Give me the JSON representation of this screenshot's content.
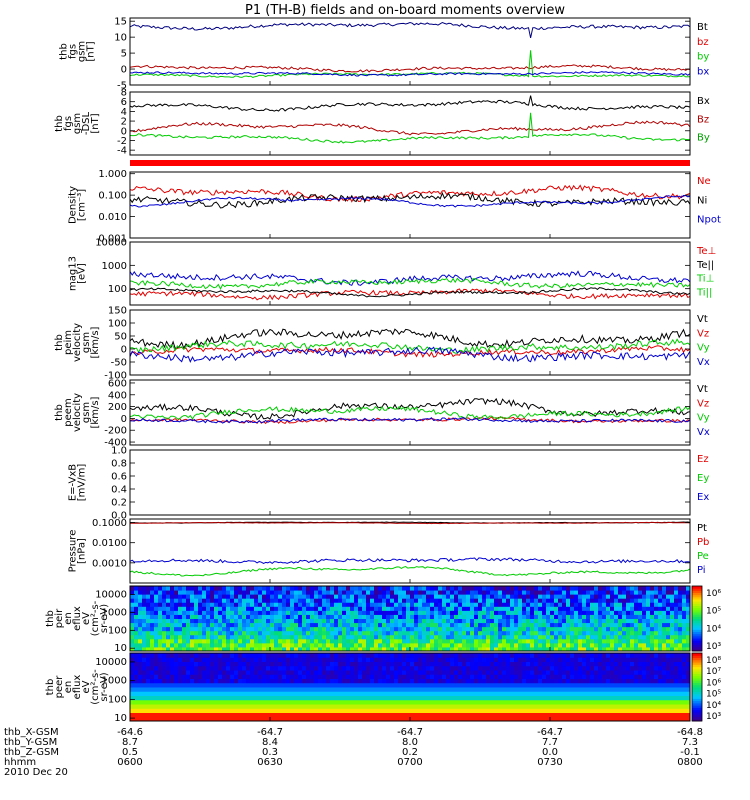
{
  "title": "P1  (TH-B) fields and on-board moments overview",
  "colors": {
    "black": "#000000",
    "red": "#e00000",
    "green": "#00cc00",
    "blue": "#0000d0",
    "darkred": "#b00000",
    "darkgreen": "#00a000"
  },
  "chart_data": [
    {
      "id": "fgs-gsm",
      "type": "line",
      "ylabel_lines": [
        "thb",
        "fgs",
        "gsm",
        "[nT]"
      ],
      "ylim": [
        -5,
        16
      ],
      "yticks": [
        -5,
        0,
        5,
        10,
        15
      ],
      "ytick_labels": [
        "-5",
        "0",
        "5",
        "10",
        "15"
      ],
      "series": [
        {
          "name": "Bt",
          "color": "#000080",
          "base": 13.5,
          "noise": 0.5,
          "wave": 0.6,
          "spike": [
            0.715,
            -3
          ],
          "legend": "#000000"
        },
        {
          "name": "bz",
          "color": "#b00000",
          "base": 0.2,
          "noise": 0.4,
          "wave": 0.5,
          "spike": null,
          "legend": "#e00000"
        },
        {
          "name": "by",
          "color": "#00cc00",
          "base": -1.8,
          "noise": 0.3,
          "wave": 0.4,
          "spike": [
            0.715,
            8
          ],
          "legend": "#00cc00"
        },
        {
          "name": "bx",
          "color": "#0000d0",
          "base": -1.5,
          "noise": 0.3,
          "wave": 0.3,
          "spike": null,
          "legend": "#0000d0"
        }
      ]
    },
    {
      "id": "fgs-gsm-dsl",
      "type": "line",
      "ylabel_lines": [
        "thb",
        "fgs",
        "gsm",
        "-DSL",
        "[nT]"
      ],
      "ylim": [
        -5,
        8
      ],
      "yticks": [
        -4,
        -2,
        0,
        2,
        4,
        6,
        8
      ],
      "ytick_labels": [
        "-4",
        "-2",
        "0",
        "2",
        "4",
        "6",
        "8"
      ],
      "series": [
        {
          "name": "Bx",
          "color": "#000000",
          "base": 5.2,
          "noise": 0.3,
          "wave": 0.6,
          "spike": [
            0.715,
            2
          ],
          "legend": "#000000"
        },
        {
          "name": "Bz",
          "color": "#b00000",
          "base": 0.5,
          "noise": 0.3,
          "wave": 0.8,
          "spike": null,
          "legend": "#b00000"
        },
        {
          "name": "By",
          "color": "#00cc00",
          "base": -1.5,
          "noise": 0.25,
          "wave": 0.5,
          "spike": [
            0.715,
            5
          ],
          "legend": "#00a000"
        }
      ]
    },
    {
      "id": "mode-bar",
      "type": "bar",
      "color": "#ff0000"
    },
    {
      "id": "density",
      "type": "line",
      "log": true,
      "ylabel_lines": [
        "Density",
        "[cm⁻³]"
      ],
      "ylim": [
        0.001,
        1.2
      ],
      "yticks": [
        0.001,
        0.01,
        0.1,
        1
      ],
      "ytick_labels": [
        "0.001",
        "0.010",
        "0.100",
        "1.000"
      ],
      "series": [
        {
          "name": "Ne",
          "color": "#e00000",
          "base": 0.12,
          "noise": 0.25,
          "wave": 0.35,
          "spike": null,
          "legend": "#e00000"
        },
        {
          "name": "Ni",
          "color": "#000000",
          "base": 0.06,
          "noise": 0.3,
          "wave": 0.3,
          "spike": null,
          "legend": "#000000"
        },
        {
          "name": "Npot",
          "color": "#0000d0",
          "base": 0.05,
          "noise": 0.1,
          "wave": 0.3,
          "spike": null,
          "legend": "#0000d0"
        }
      ]
    },
    {
      "id": "temperature",
      "type": "line",
      "log": true,
      "ylabel_lines": [
        "mag13",
        "[eV]"
      ],
      "ylim": [
        20,
        10000
      ],
      "yticks": [
        100,
        1000,
        10000
      ],
      "ytick_labels": [
        "100",
        "1000",
        "10000"
      ],
      "series": [
        {
          "name": "Te⊥",
          "color": "#e00000",
          "base": 60,
          "noise": 0.2,
          "wave": 0.2,
          "spike": null,
          "legend": "#e00000"
        },
        {
          "name": "Te||",
          "color": "#000000",
          "base": 70,
          "noise": 0.1,
          "wave": 0.2,
          "spike": null,
          "legend": "#000000"
        },
        {
          "name": "Ti⊥",
          "color": "#0000d0",
          "base": 280,
          "noise": 0.25,
          "wave": 0.25,
          "spike": null,
          "legend": "#00cc00"
        },
        {
          "name": "Ti||",
          "color": "#00cc00",
          "base": 170,
          "noise": 0.2,
          "wave": 0.2,
          "spike": null,
          "legend": "#00cc00"
        }
      ]
    },
    {
      "id": "peim-velocity",
      "type": "line",
      "ylabel_lines": [
        "thb",
        "peim",
        "velocity",
        "gsm",
        "[km/s]"
      ],
      "ylim": [
        -100,
        150
      ],
      "yticks": [
        -100,
        -50,
        0,
        50,
        100,
        150
      ],
      "ytick_labels": [
        "-100",
        "-50",
        "0",
        "50",
        "100",
        "150"
      ],
      "series": [
        {
          "name": "Vt",
          "color": "#000000",
          "base": 45,
          "noise": 14,
          "wave": 20,
          "spike": null,
          "legend": "#000000"
        },
        {
          "name": "Vz",
          "color": "#e00000",
          "base": -10,
          "noise": 10,
          "wave": 8,
          "spike": null,
          "legend": "#e00000"
        },
        {
          "name": "Vy",
          "color": "#00cc00",
          "base": 10,
          "noise": 12,
          "wave": 10,
          "spike": null,
          "legend": "#00cc00"
        },
        {
          "name": "Vx",
          "color": "#0000d0",
          "base": -20,
          "noise": 14,
          "wave": 12,
          "spike": null,
          "legend": "#0000d0"
        }
      ]
    },
    {
      "id": "peem-velocity",
      "type": "line",
      "ylabel_lines": [
        "thb",
        "peem",
        "velocity",
        "gsm",
        "[km/s]"
      ],
      "ylim": [
        -450,
        650
      ],
      "yticks": [
        -400,
        -200,
        0,
        200,
        400,
        600
      ],
      "ytick_labels": [
        "-400",
        "-200",
        "0",
        "200",
        "400",
        "600"
      ],
      "series": [
        {
          "name": "Vt",
          "color": "#000000",
          "base": 170,
          "noise": 50,
          "wave": 90,
          "spike": null,
          "legend": "#000000"
        },
        {
          "name": "Vz",
          "color": "#e00000",
          "base": -30,
          "noise": 25,
          "wave": 20,
          "spike": null,
          "legend": "#e00000"
        },
        {
          "name": "Vy",
          "color": "#00cc00",
          "base": 100,
          "noise": 40,
          "wave": 60,
          "spike": null,
          "legend": "#00cc00"
        },
        {
          "name": "Vx",
          "color": "#0000d0",
          "base": -30,
          "noise": 25,
          "wave": 15,
          "spike": null,
          "legend": "#0000d0"
        }
      ]
    },
    {
      "id": "efield",
      "type": "line",
      "ylabel_lines": [
        "E=-VxB",
        "[mV/m]"
      ],
      "ylim": [
        0,
        1
      ],
      "yticks": [
        0,
        0.2,
        0.4,
        0.6,
        0.8,
        1.0
      ],
      "ytick_labels": [
        "0.0",
        "0.2",
        "0.4",
        "0.6",
        "0.8",
        "1.0"
      ],
      "series": [
        {
          "name": "Ez",
          "color": "#e00000",
          "legend": "#e00000"
        },
        {
          "name": "Ey",
          "color": "#00cc00",
          "legend": "#00cc00"
        },
        {
          "name": "Ex",
          "color": "#0000d0",
          "legend": "#0000d0"
        }
      ]
    },
    {
      "id": "pressure",
      "type": "line",
      "log": true,
      "ylabel_lines": [
        "Pressure",
        "[nPa]"
      ],
      "ylim": [
        0.0001,
        0.15
      ],
      "yticks": [
        0.001,
        0.01,
        0.1
      ],
      "ytick_labels": [
        "0.0010",
        "0.0100",
        "0.1000"
      ],
      "series": [
        {
          "name": "Pt",
          "color": "#000000",
          "base": 0.1,
          "noise": 0.02,
          "wave": 0.03,
          "spike": null,
          "legend": "#000000"
        },
        {
          "name": "Pb",
          "color": "#b00000",
          "base": 0.095,
          "noise": 0.02,
          "wave": 0.03,
          "spike": null,
          "legend": "#e00000"
        },
        {
          "name": "Pe",
          "color": "#00cc00",
          "base": 0.0004,
          "noise": 0.1,
          "wave": 0.3,
          "spike": null,
          "legend": "#00cc00"
        },
        {
          "name": "Pi",
          "color": "#0000d0",
          "base": 0.0013,
          "noise": 0.15,
          "wave": 0.1,
          "spike": null,
          "legend": "#0000d0"
        }
      ]
    },
    {
      "id": "peir-eflux",
      "type": "heatmap",
      "ylabel_lines": [
        "thb",
        "peir",
        "en",
        "eflux",
        "eV",
        "(cm²-s-",
        "sr-eV)"
      ],
      "ylim": [
        7,
        30000
      ],
      "yticks": [
        10,
        100,
        1000,
        10000
      ],
      "ytick_labels": [
        "10",
        "100",
        "1000",
        "10000"
      ],
      "colorbar_ticks": [
        "10³",
        "10⁴",
        "10⁵",
        "10⁶"
      ],
      "zlim": [
        2.5,
        6.3
      ]
    },
    {
      "id": "peer-eflux",
      "type": "heatmap",
      "ylabel_lines": [
        "thb",
        "peer",
        "en",
        "eflux",
        "eV",
        "(cm²-s-",
        "sr-eV)"
      ],
      "ylim": [
        7,
        30000
      ],
      "yticks": [
        10,
        100,
        1000,
        10000
      ],
      "ytick_labels": [
        "10",
        "100",
        "1000",
        "10000"
      ],
      "colorbar_ticks": [
        "10³",
        "10⁴",
        "10⁵",
        "10⁶",
        "10⁷",
        "10⁸"
      ],
      "zlim": [
        2.8,
        8.2
      ]
    }
  ],
  "x_axis": {
    "rows": [
      {
        "label": "thb_X-GSM",
        "values": [
          "-64.6",
          "-64.7",
          "-64.7",
          "-64.7",
          "-64.8"
        ]
      },
      {
        "label": "thb_Y-GSM",
        "values": [
          "8.7",
          "8.4",
          "8.0",
          "7.7",
          "7.3"
        ]
      },
      {
        "label": "thb_Z-GSM",
        "values": [
          "0.5",
          "0.3",
          "0.2",
          "0.0",
          "-0.1"
        ]
      },
      {
        "label": "hhmm",
        "values": [
          "0600",
          "0630",
          "0700",
          "0730",
          "0800"
        ]
      }
    ],
    "date": "2010 Dec 20"
  }
}
